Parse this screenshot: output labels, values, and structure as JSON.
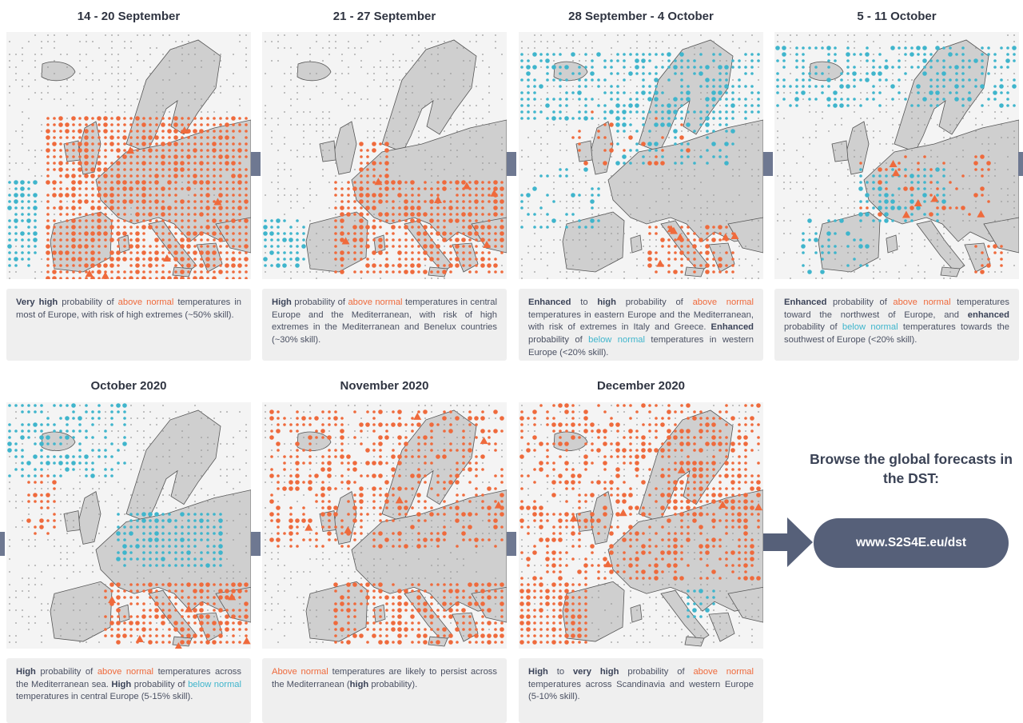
{
  "colors": {
    "warm": "#ef6a3c",
    "cool": "#3fb5cc",
    "land": "#cfcfcf",
    "sea": "#f4f4f4",
    "button": "#566079"
  },
  "panels": [
    {
      "title": "14 - 20 September",
      "desc": [
        {
          "t": "Very high",
          "s": "b"
        },
        {
          "t": " probability of "
        },
        {
          "t": "above normal",
          "s": "warm"
        },
        {
          "t": " temperatures in most of Europe, with risk of high extremes (~50% skill)."
        }
      ]
    },
    {
      "title": "21 - 27 September",
      "desc": [
        {
          "t": "High",
          "s": "b"
        },
        {
          "t": " probability of "
        },
        {
          "t": "above normal",
          "s": "warm"
        },
        {
          "t": " temperatures in central Europe and the Mediterranean, with risk of high extremes in the Mediterranean and Benelux countries (~30% skill)."
        }
      ]
    },
    {
      "title": "28 September - 4 October",
      "desc": [
        {
          "t": "Enhanced",
          "s": "b"
        },
        {
          "t": " to "
        },
        {
          "t": "high",
          "s": "b"
        },
        {
          "t": " probability of "
        },
        {
          "t": "above normal",
          "s": "warm"
        },
        {
          "t": " temperatures in eastern Europe and the Mediterranean, with risk of extremes in Italy and Greece. "
        },
        {
          "t": "Enhanced",
          "s": "b"
        },
        {
          "t": " probability of "
        },
        {
          "t": "below normal",
          "s": "cool"
        },
        {
          "t": " temperatures in western Europe (<20% skill)."
        }
      ]
    },
    {
      "title": "5 - 11 October",
      "desc": [
        {
          "t": "Enhanced",
          "s": "b"
        },
        {
          "t": " probability of "
        },
        {
          "t": "above normal",
          "s": "warm"
        },
        {
          "t": " temperatures toward the northwest of Europe, and "
        },
        {
          "t": "enhanced",
          "s": "b"
        },
        {
          "t": " probability of "
        },
        {
          "t": "below normal",
          "s": "cool"
        },
        {
          "t": " temperatures towards the southwest of Europe (<20% skill)."
        }
      ]
    },
    {
      "title": "October 2020",
      "desc": [
        {
          "t": "High",
          "s": "b"
        },
        {
          "t": " probability of "
        },
        {
          "t": "above normal",
          "s": "warm"
        },
        {
          "t": " temperatures across the Mediterranean sea. "
        },
        {
          "t": "High",
          "s": "b"
        },
        {
          "t": " probability of "
        },
        {
          "t": "below normal",
          "s": "cool"
        },
        {
          "t": " temperatures in central Europe (5-15% skill)."
        }
      ]
    },
    {
      "title": "November 2020",
      "desc": [
        {
          "t": "Above normal",
          "s": "warm"
        },
        {
          "t": " temperatures are likely to persist across the Mediterranean ("
        },
        {
          "t": "high",
          "s": "b"
        },
        {
          "t": " probability)."
        }
      ]
    },
    {
      "title": "December 2020",
      "desc": [
        {
          "t": "High",
          "s": "b"
        },
        {
          "t": " to "
        },
        {
          "t": "very high",
          "s": "b"
        },
        {
          "t": " probability of "
        },
        {
          "t": "above normal",
          "s": "warm"
        },
        {
          "t": " temperatures across Scandinavia and western Europe (5-10% skill)."
        }
      ]
    }
  ],
  "browse": {
    "text": "Browse the global forecasts in the DST:",
    "url": "www.S2S4E.eu/dst"
  },
  "icons": {
    "connector": "connector-bar",
    "arrow": "arrow-right-icon"
  }
}
